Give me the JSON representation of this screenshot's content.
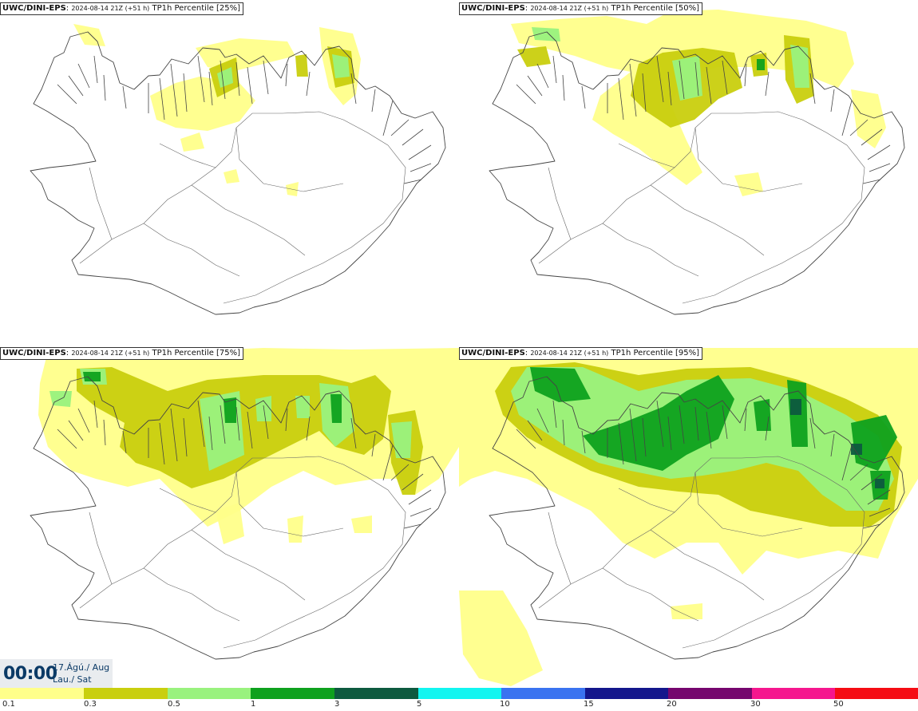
{
  "panels": [
    {
      "model": "UWC/DINI-EPS",
      "sep": ": ",
      "run": "2024-08-14 21Z (+51 h)",
      "param": " TP1h Percentile [25%]"
    },
    {
      "model": "UWC/DINI-EPS",
      "sep": ": ",
      "run": "2024-08-14 21Z (+51 h)",
      "param": " TP1h Percentile [50%]"
    },
    {
      "model": "UWC/DINI-EPS",
      "sep": ": ",
      "run": "2024-08-14 21Z (+51 h)",
      "param": " TP1h Percentile [75%]"
    },
    {
      "model": "UWC/DINI-EPS",
      "sep": ": ",
      "run": "2024-08-14 21Z (+51 h)",
      "param": " TP1h Percentile [95%]"
    }
  ],
  "clock": {
    "time": "00:00",
    "date": "17.Ágú./ Aug",
    "day": "Lau./ Sat"
  },
  "legend": {
    "labels": [
      "0.1",
      "0.3",
      "0.5",
      "1",
      "3",
      "5",
      "10",
      "15",
      "20",
      "30",
      "50"
    ],
    "colors": [
      "#ffff8a",
      "#c9cf0e",
      "#99f27e",
      "#0ea11e",
      "#0d5a3f",
      "#12f5f0",
      "#3a73f0",
      "#14168c",
      "#75066e",
      "#f5168e",
      "#f50c14"
    ]
  }
}
